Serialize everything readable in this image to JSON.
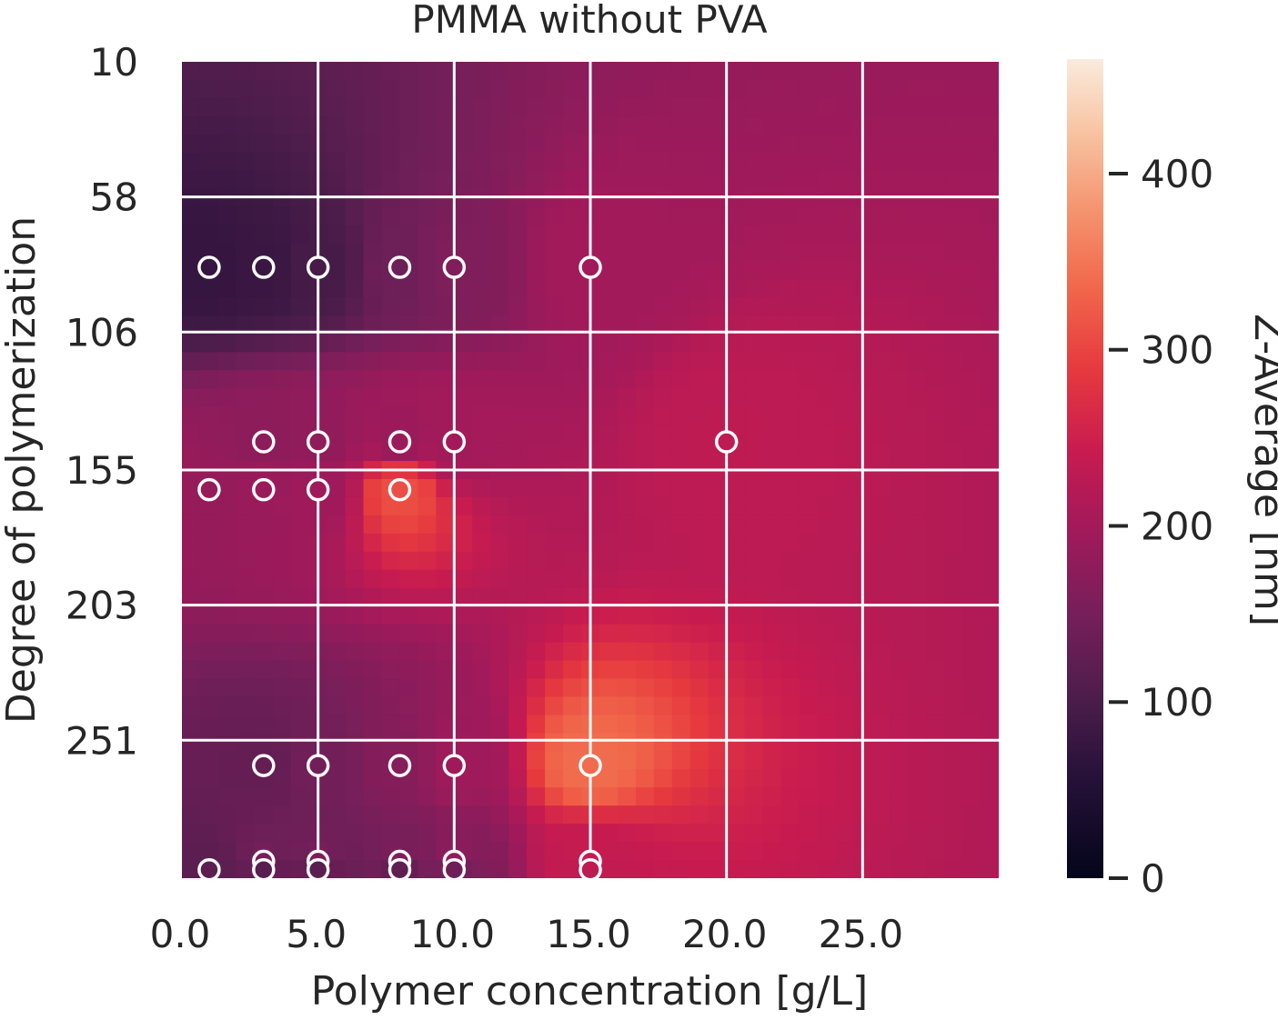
{
  "chart_data": {
    "type": "heatmap",
    "title": "PMMA without PVA",
    "xlabel": "Polymer concentration [g/L]",
    "ylabel": "Degree of polymerization",
    "colorbar_label": "Z-Average [nm]",
    "xlim": [
      0.0,
      30.0
    ],
    "ylim": [
      10,
      300
    ],
    "x_ticks": [
      "0.0",
      "5.0",
      "10.0",
      "15.0",
      "20.0",
      "25.0"
    ],
    "y_ticks": [
      "10",
      "58",
      "106",
      "155",
      "203",
      "251"
    ],
    "colorbar_range": [
      0,
      465
    ],
    "colorbar_ticks": [
      "0",
      "100",
      "200",
      "300",
      "400"
    ],
    "colormap": "rocket",
    "grid": true,
    "grid_color": "#ffffff",
    "measurements": [
      {
        "x": 1,
        "y": 83,
        "z": 75
      },
      {
        "x": 3,
        "y": 83,
        "z": 80
      },
      {
        "x": 5,
        "y": 83,
        "z": 95
      },
      {
        "x": 8,
        "y": 83,
        "z": 140
      },
      {
        "x": 10,
        "y": 83,
        "z": 160
      },
      {
        "x": 15,
        "y": 83,
        "z": 200
      },
      {
        "x": 3,
        "y": 145,
        "z": 175
      },
      {
        "x": 5,
        "y": 145,
        "z": 180
      },
      {
        "x": 8,
        "y": 145,
        "z": 190
      },
      {
        "x": 10,
        "y": 145,
        "z": 200
      },
      {
        "x": 20,
        "y": 145,
        "z": 230
      },
      {
        "x": 1,
        "y": 162,
        "z": 185
      },
      {
        "x": 3,
        "y": 162,
        "z": 190
      },
      {
        "x": 5,
        "y": 162,
        "z": 195
      },
      {
        "x": 8,
        "y": 162,
        "z": 310
      },
      {
        "x": 3,
        "y": 260,
        "z": 130
      },
      {
        "x": 5,
        "y": 260,
        "z": 145
      },
      {
        "x": 8,
        "y": 260,
        "z": 165
      },
      {
        "x": 10,
        "y": 260,
        "z": 195
      },
      {
        "x": 15,
        "y": 260,
        "z": 340
      },
      {
        "x": 3,
        "y": 294,
        "z": 150
      },
      {
        "x": 5,
        "y": 294,
        "z": 155
      },
      {
        "x": 8,
        "y": 294,
        "z": 160
      },
      {
        "x": 10,
        "y": 294,
        "z": 180
      },
      {
        "x": 15,
        "y": 294,
        "z": 240
      },
      {
        "x": 1,
        "y": 297,
        "z": 120
      },
      {
        "x": 3,
        "y": 297,
        "z": 115
      },
      {
        "x": 5,
        "y": 297,
        "z": 118
      },
      {
        "x": 8,
        "y": 297,
        "z": 125
      },
      {
        "x": 10,
        "y": 297,
        "z": 140
      },
      {
        "x": 15,
        "y": 297,
        "z": 230
      }
    ]
  }
}
